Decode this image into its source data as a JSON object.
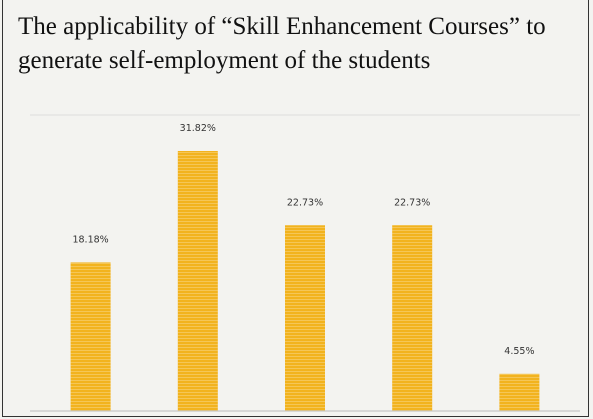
{
  "chart_data": {
    "type": "bar",
    "title": "The applicability of “Skill Enhancement Courses” to generate self-employment of the students",
    "categories": [
      null,
      null,
      null,
      null,
      null
    ],
    "values": [
      18.18,
      31.82,
      22.73,
      22.73,
      4.55
    ],
    "value_labels": [
      "18.18%",
      "31.82%",
      "22.73%",
      "22.73%",
      "4.55%"
    ],
    "color": "#f2b31e",
    "ylim": [
      0,
      35
    ]
  }
}
